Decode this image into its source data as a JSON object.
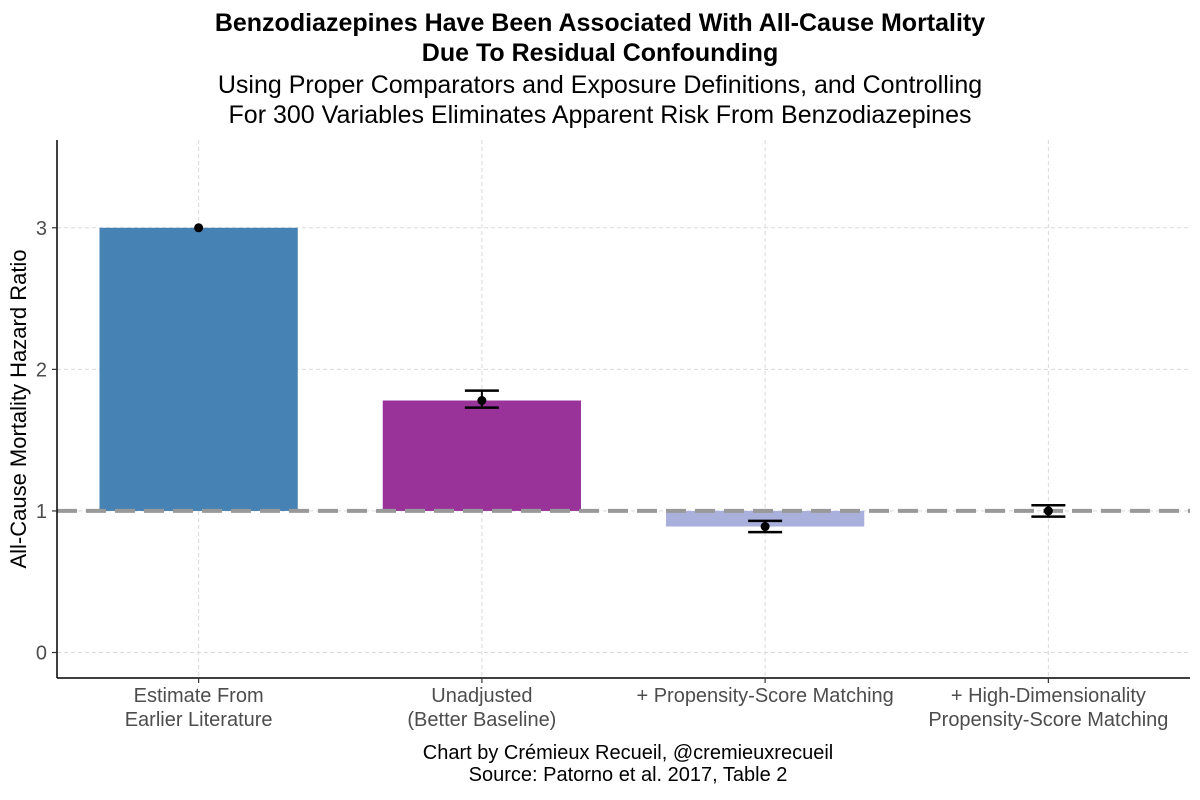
{
  "chart_data": {
    "type": "bar",
    "title_lines": [
      "Benzodiazepines Have Been Associated With All-Cause Mortality",
      "Due To Residual Confounding"
    ],
    "subtitle_lines": [
      "Using Proper Comparators and Exposure Definitions, and Controlling",
      "For 300 Variables Eliminates Apparent Risk From Benzodiazepines"
    ],
    "ylabel": "All-Cause Mortality Hazard Ratio",
    "xlabel": "",
    "baseline": 1,
    "ylim": [
      -0.18,
      3.62
    ],
    "yticks": [
      0,
      1,
      2,
      3
    ],
    "grid": true,
    "reference_line": {
      "value": 1,
      "style": "dashed",
      "color": "#999999"
    },
    "categories": [
      [
        "Estimate From",
        "Earlier Literature"
      ],
      [
        "Unadjusted",
        "(Better Baseline)"
      ],
      [
        "+ Propensity-Score Matching"
      ],
      [
        "+ High-Dimensionality",
        "Propensity-Score Matching"
      ]
    ],
    "values": [
      3.0,
      1.78,
      0.89,
      1.0
    ],
    "error_bars": [
      null,
      [
        1.73,
        1.85
      ],
      [
        0.85,
        0.93
      ],
      [
        0.96,
        1.04
      ]
    ],
    "colors": [
      "#4682B4",
      "#993399",
      "#A9B0DC",
      "#A9B0DC"
    ],
    "caption_lines": [
      "Chart by Crémieux Recueil, @cremieuxrecueil",
      "Source: Patorno et al. 2017, Table 2"
    ]
  }
}
